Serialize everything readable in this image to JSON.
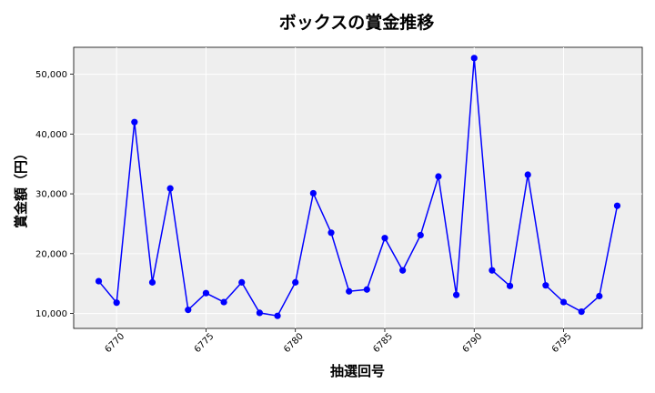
{
  "chart_data": {
    "type": "line",
    "title": "ボックスの賞金推移",
    "xlabel": "抽選回号",
    "ylabel": "賞金額（円）",
    "xlim": [
      6767.6,
      6799.4
    ],
    "ylim": [
      7500,
      54500
    ],
    "x_ticks": [
      6770,
      6775,
      6780,
      6785,
      6790,
      6795
    ],
    "x_tick_labels": [
      "6770",
      "6775",
      "6780",
      "6785",
      "6790",
      "6795"
    ],
    "y_ticks": [
      10000,
      20000,
      30000,
      40000,
      50000
    ],
    "y_tick_labels": [
      "10,000",
      "20,000",
      "30,000",
      "40,000",
      "50,000"
    ],
    "grid": true,
    "series": [
      {
        "color": "#0000ff",
        "x": [
          6769,
          6770,
          6771,
          6772,
          6773,
          6774,
          6775,
          6776,
          6777,
          6778,
          6779,
          6780,
          6781,
          6782,
          6783,
          6784,
          6785,
          6786,
          6787,
          6788,
          6789,
          6790,
          6791,
          6792,
          6793,
          6794,
          6795,
          6796,
          6797,
          6798
        ],
        "values": [
          15400,
          11800,
          42000,
          15200,
          30900,
          10600,
          13400,
          11900,
          15200,
          10100,
          9600,
          15200,
          30100,
          23500,
          13700,
          14000,
          22600,
          17200,
          23100,
          32900,
          13100,
          52700,
          17200,
          14600,
          33200,
          14700,
          11900,
          10300,
          12900,
          28000
        ]
      }
    ]
  }
}
